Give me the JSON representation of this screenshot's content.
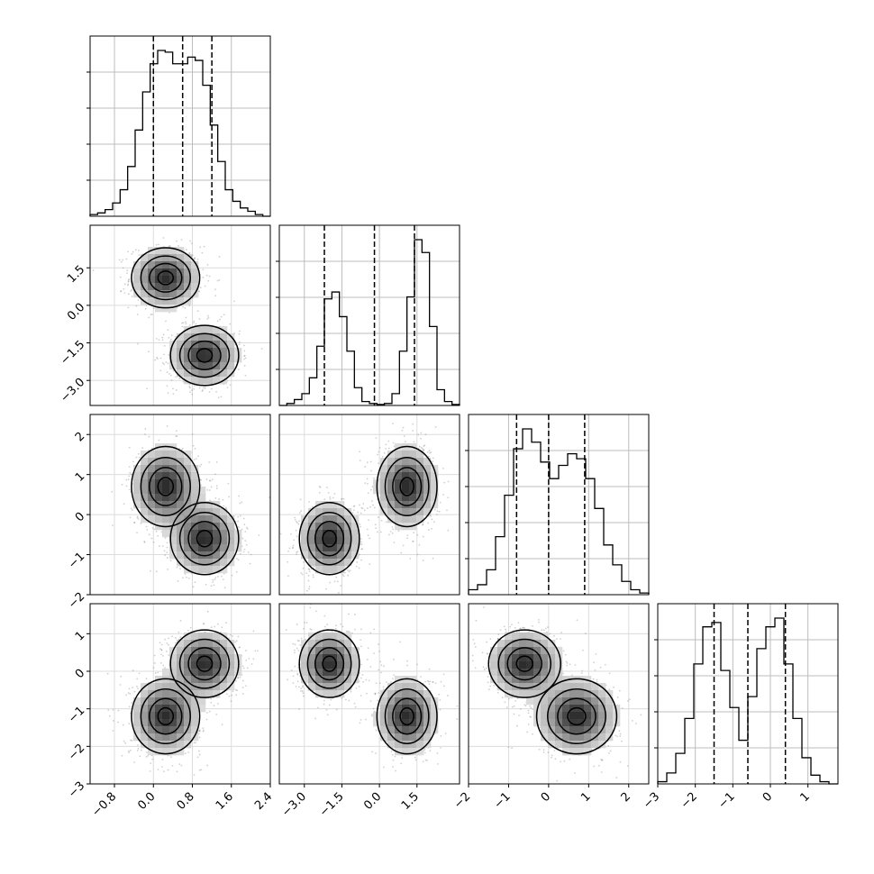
{
  "chart_data": {
    "type": "corner",
    "grid": true,
    "n_params": 4,
    "axes": [
      {
        "name": "",
        "range": [
          -1.3,
          2.4
        ],
        "ticks": [
          -0.8,
          0.0,
          0.8,
          1.6,
          2.4
        ],
        "tick_labels": [
          "−0.8",
          "0.0",
          "0.8",
          "1.6",
          "2.4"
        ],
        "quantiles": [
          0.0,
          0.6,
          1.2
        ]
      },
      {
        "name": "",
        "range": [
          -4.0,
          3.2
        ],
        "ticks": [
          -3.0,
          -1.5,
          0.0,
          1.5
        ],
        "tick_labels": [
          "−3.0",
          "−1.5",
          "0.0",
          "1.5"
        ],
        "quantiles": [
          -2.2,
          -0.2,
          1.4
        ]
      },
      {
        "name": "",
        "range": [
          -2.0,
          2.5
        ],
        "ticks": [
          -2,
          -1,
          0,
          1,
          2
        ],
        "tick_labels": [
          "−2",
          "−1",
          "0",
          "1",
          "2"
        ],
        "quantiles": [
          -0.8,
          0.0,
          0.9
        ]
      },
      {
        "name": "",
        "range": [
          -3.0,
          1.8
        ],
        "ticks": [
          -3,
          -2,
          -1,
          0,
          1
        ],
        "tick_labels": [
          "−3",
          "−2",
          "−1",
          "0",
          "1"
        ],
        "quantiles": [
          -1.5,
          -0.6,
          0.4
        ]
      }
    ],
    "marginals": [
      {
        "param": 0,
        "bins": [
          -1.3,
          2.4
        ],
        "counts": [
          1,
          2,
          4,
          8,
          16,
          30,
          52,
          75,
          92,
          100,
          99,
          92,
          92,
          96,
          94,
          79,
          55,
          33,
          16,
          9,
          5,
          3,
          1,
          0
        ]
      },
      {
        "param": 1,
        "bins": [
          -4.0,
          3.2
        ],
        "counts": [
          0,
          2,
          6,
          12,
          28,
          60,
          108,
          115,
          90,
          55,
          18,
          4,
          2,
          1,
          2,
          12,
          55,
          110,
          168,
          155,
          80,
          16,
          4,
          1
        ]
      },
      {
        "param": 2,
        "bins": [
          -2.0,
          2.5
        ],
        "counts": [
          3,
          6,
          15,
          35,
          60,
          88,
          100,
          92,
          80,
          70,
          78,
          85,
          82,
          70,
          52,
          30,
          18,
          8,
          3,
          1
        ]
      },
      {
        "param": 3,
        "bins": [
          -3.0,
          1.8
        ],
        "counts": [
          1,
          5,
          14,
          30,
          55,
          72,
          74,
          52,
          35,
          20,
          40,
          62,
          72,
          76,
          55,
          30,
          12,
          4,
          1,
          0
        ]
      }
    ],
    "modes": [
      {
        "center": [
          0.25,
          1.1,
          0.7,
          -1.2
        ],
        "spread": [
          0.35,
          0.6,
          0.5,
          0.5
        ],
        "weight": 0.5
      },
      {
        "center": [
          1.05,
          -2.0,
          -0.6,
          0.2
        ],
        "spread": [
          0.35,
          0.6,
          0.45,
          0.45
        ],
        "weight": 0.5
      }
    ]
  }
}
